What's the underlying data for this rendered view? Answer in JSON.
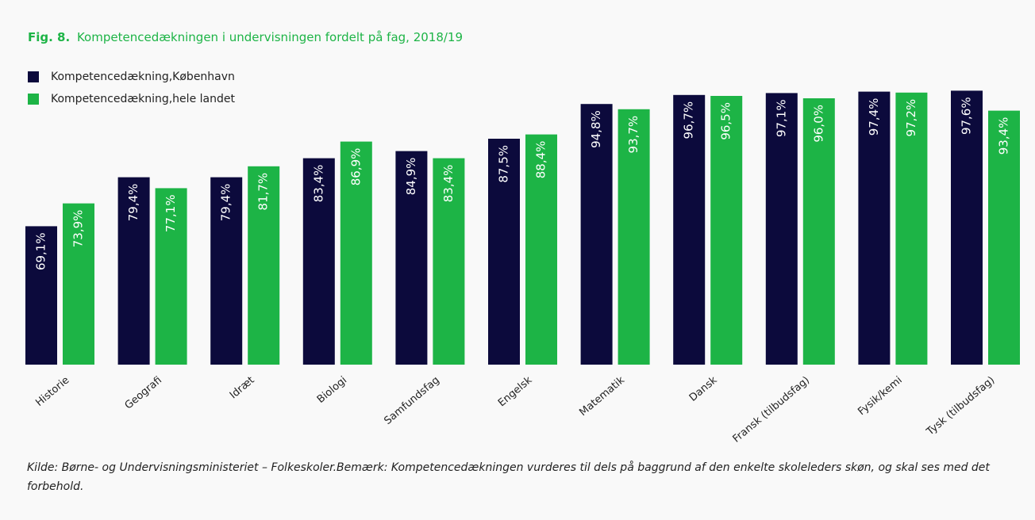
{
  "chart_data": {
    "type": "bar",
    "figure_label": "Fig. 8.",
    "title": "Kompetencedækningen i undervisningen fordelt på fag, 2018/19",
    "categories": [
      "Historie",
      "Geografi",
      "Idræt",
      "Biologi",
      "Samfundsfag",
      "Engelsk",
      "Matematik",
      "Dansk",
      "Fransk (tilbudsfag)",
      "Fysik/kemi",
      "Tysk (tilbudsfag)"
    ],
    "series": [
      {
        "name": "Kompetencedækning,København",
        "color": "#0c0a3c",
        "values": [
          69.1,
          79.4,
          79.4,
          83.4,
          84.9,
          87.5,
          94.8,
          96.7,
          97.1,
          97.4,
          97.6
        ],
        "value_labels": [
          "69,1%",
          "79,4%",
          "79,4%",
          "83,4%",
          "84,9%",
          "87,5%",
          "94,8%",
          "96,7%",
          "97,1%",
          "97,4%",
          "97,6%"
        ]
      },
      {
        "name": "Kompetencedækning,hele landet",
        "color": "#1db446",
        "values": [
          73.9,
          77.1,
          81.7,
          86.9,
          83.4,
          88.4,
          93.7,
          96.5,
          96.0,
          97.2,
          93.4
        ],
        "value_labels": [
          "73,9%",
          "77,1%",
          "81,7%",
          "86,9%",
          "83,4%",
          "88,4%",
          "93,7%",
          "96,5%",
          "96,0%",
          "97,2%",
          "93,4%"
        ]
      }
    ],
    "ylim": [
      40,
      100
    ],
    "legend": "top-left",
    "note": "Kilde: Børne- og Undervisningsministeriet – Folkeskoler.Bemærk: Kompetencedækningen vurderes til dels på baggrund af den enkelte skoleleders skøn, og skal ses med det forbehold."
  }
}
